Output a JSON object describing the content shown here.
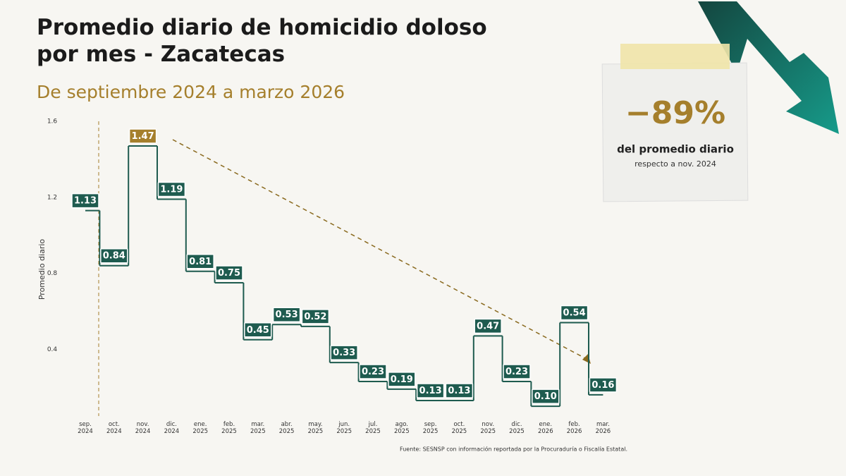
{
  "chart_data": {
    "type": "step",
    "title": "Promedio diario de homicidio doloso por mes - Zacatecas",
    "subtitle": "De septiembre 2024 a marzo 2026",
    "y_label": "Promedio diario",
    "categories": [
      "sep. 2024",
      "oct. 2024",
      "nov. 2024",
      "dic. 2024",
      "ene. 2025",
      "feb. 2025",
      "mar. 2025",
      "abr. 2025",
      "may. 2025",
      "jun. 2025",
      "jul. 2025",
      "ago. 2025",
      "sep. 2025",
      "oct. 2025",
      "nov. 2025",
      "dic. 2025",
      "ene. 2026",
      "feb. 2026",
      "mar. 2026"
    ],
    "values": [
      1.13,
      0.84,
      1.47,
      1.19,
      0.81,
      0.75,
      0.45,
      0.53,
      0.52,
      0.33,
      0.23,
      0.19,
      0.13,
      0.13,
      0.47,
      0.23,
      0.1,
      0.54,
      0.16
    ],
    "value_labels": [
      "1.13",
      "0.84",
      "1.47",
      "1.19",
      "0.81",
      "0.75",
      "0.45",
      "0.53",
      "0.52",
      "0.33",
      "0.23",
      "0.19",
      "0.13",
      "0.13",
      "0.47",
      "0.23",
      "0.10",
      "0.54",
      "0.16"
    ],
    "color": "#1e5b4f",
    "highlight_color": "#a57f2c",
    "ylim": [
      0,
      1.6
    ],
    "yticks": [
      0.4,
      0.8,
      1.2,
      1.6
    ],
    "note": {
      "value": "−89%",
      "line1": "del promedio diario",
      "line2": "respecto a nov. 2024"
    },
    "source": "Fuente: SESNSP con información reportada por la Procuraduría o Fiscalía Estatal."
  }
}
